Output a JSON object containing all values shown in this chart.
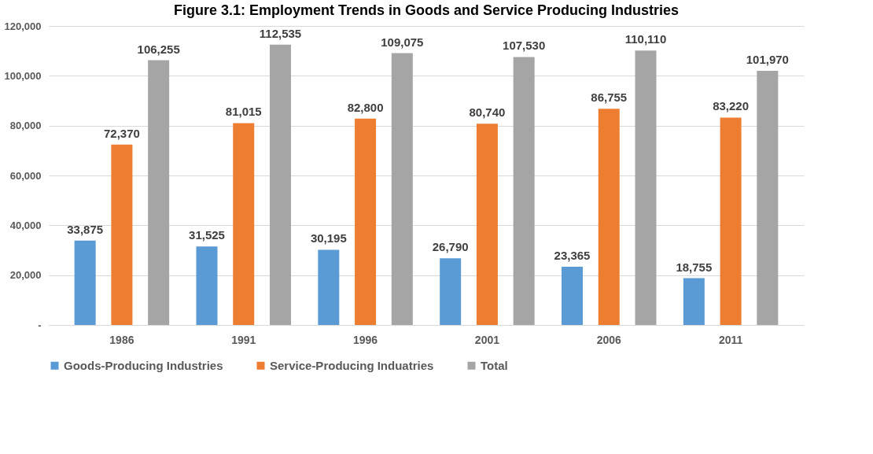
{
  "chart_data": {
    "type": "bar",
    "title": "Figure 3.1: Employment Trends in Goods and Service Producing Industries",
    "categories": [
      "1986",
      "1991",
      "1996",
      "2001",
      "2006",
      "2011"
    ],
    "series": [
      {
        "name": "Goods-Producing Industries",
        "color": "#5b9bd5",
        "values": [
          33875,
          31525,
          30195,
          26790,
          23365,
          18755
        ],
        "value_labels": [
          "33,875",
          "31,525",
          "30,195",
          "26,790",
          "23,365",
          "18,755"
        ]
      },
      {
        "name": "Service-Producing Induatries",
        "color": "#ed7d31",
        "values": [
          72370,
          81015,
          82800,
          80740,
          86755,
          83220
        ],
        "value_labels": [
          "72,370",
          "81,015",
          "82,800",
          "80,740",
          "86,755",
          "83,220"
        ]
      },
      {
        "name": "Total",
        "color": "#a5a5a5",
        "values": [
          106255,
          112535,
          109075,
          107530,
          110110,
          101970
        ],
        "value_labels": [
          "106,255",
          "112,535",
          "109,075",
          "107,530",
          "110,110",
          "101,970"
        ]
      }
    ],
    "ylim": [
      0,
      120000
    ],
    "yticks": [
      {
        "value": 0,
        "label": "-"
      },
      {
        "value": 20000,
        "label": "20,000"
      },
      {
        "value": 40000,
        "label": "40,000"
      },
      {
        "value": 60000,
        "label": "60,000"
      },
      {
        "value": 80000,
        "label": "80,000"
      },
      {
        "value": 100000,
        "label": "100,000"
      },
      {
        "value": 120000,
        "label": "120,000"
      }
    ],
    "grid": "y",
    "legend": "bottom"
  }
}
